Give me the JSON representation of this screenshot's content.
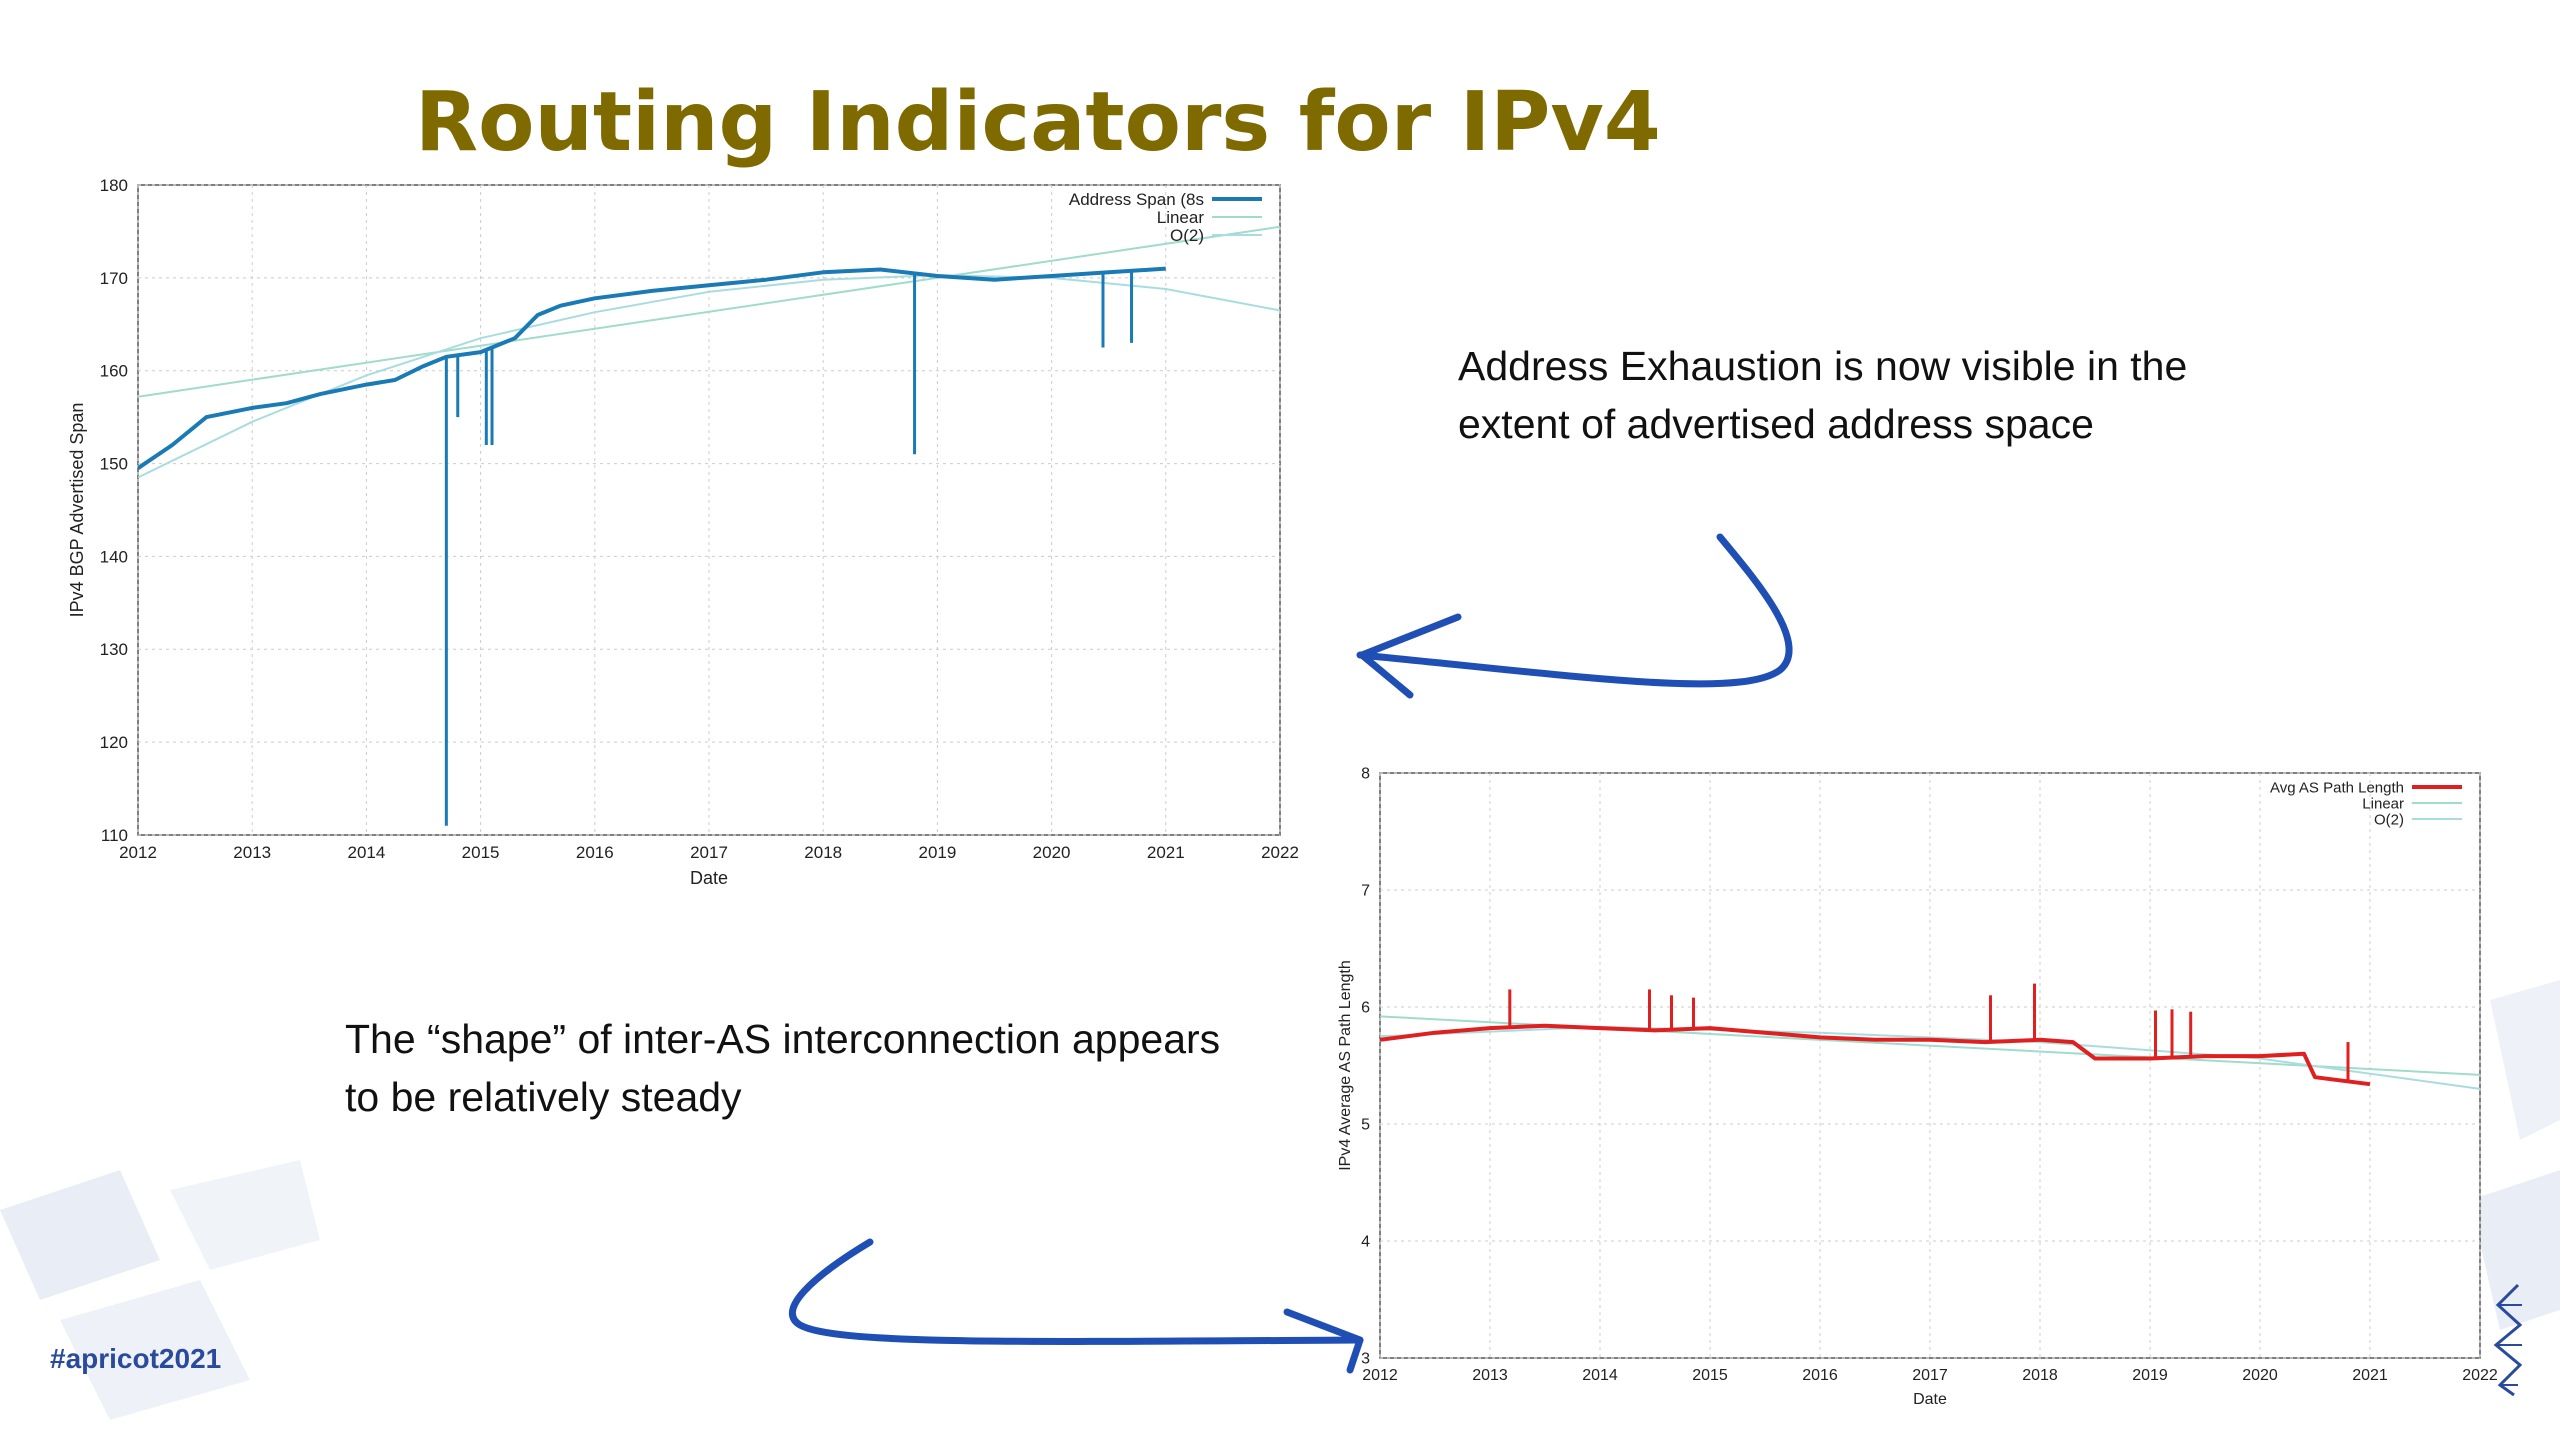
{
  "slide": {
    "title": "Routing Indicators for IPv4",
    "callout_exhaustion": "Address Exhaustion is now visible in the extent of advertised address space",
    "callout_shape": "The “shape” of inter-AS interconnection appears to be relatively steady",
    "hashtag": "#apricot2021",
    "title_color": "#7f6a00",
    "arrow_color": "#1f4fb5"
  },
  "chart_data": [
    {
      "type": "line",
      "xlabel": "Date",
      "ylabel": "IPv4 BGP Advertised Span",
      "xlim": [
        2012,
        2022
      ],
      "ylim": [
        110,
        180
      ],
      "xticks": [
        "2012",
        "2013",
        "2014",
        "2015",
        "2016",
        "2017",
        "2018",
        "2019",
        "2020",
        "2021",
        "2022"
      ],
      "yticks": [
        "110",
        "120",
        "130",
        "140",
        "150",
        "160",
        "170",
        "180"
      ],
      "grid": true,
      "legend_position": "top-right",
      "series": [
        {
          "name": "Address Span (8s",
          "color": "#1a7ab5",
          "x": [
            2012.0,
            2012.3,
            2012.6,
            2013.0,
            2013.3,
            2013.6,
            2014.0,
            2014.25,
            2014.5,
            2014.7,
            2015.0,
            2015.3,
            2015.5,
            2015.7,
            2016.0,
            2016.5,
            2017.0,
            2017.5,
            2018.0,
            2018.5,
            2019.0,
            2019.5,
            2020.0,
            2020.5,
            2021.0
          ],
          "y": [
            149.5,
            152.0,
            155.0,
            156.0,
            156.5,
            157.5,
            158.5,
            159.0,
            160.5,
            161.5,
            162.0,
            163.5,
            166.0,
            167.0,
            167.8,
            168.6,
            169.2,
            169.8,
            170.6,
            170.9,
            170.2,
            169.8,
            170.2,
            170.6,
            171.0
          ]
        },
        {
          "name": "Linear",
          "color": "#9fdccb",
          "x": [
            2012,
            2022
          ],
          "y": [
            157.2,
            175.5
          ]
        },
        {
          "name": "O(2)",
          "color": "#a8dde0",
          "x": [
            2012.0,
            2013.0,
            2014.0,
            2015.0,
            2016.0,
            2017.0,
            2018.0,
            2019.0,
            2020.0,
            2021.0,
            2022.0
          ],
          "y": [
            148.5,
            154.5,
            159.5,
            163.5,
            166.3,
            168.5,
            169.8,
            170.3,
            170.0,
            168.8,
            166.5
          ]
        }
      ],
      "annotations": [
        {
          "x": 2014.7,
          "y": 111.0
        },
        {
          "x": 2014.8,
          "y": 155.0
        },
        {
          "x": 2015.05,
          "y": 152.0
        },
        {
          "x": 2015.1,
          "y": 152.0
        },
        {
          "x": 2018.8,
          "y": 151.0
        },
        {
          "x": 2020.45,
          "y": 162.5
        },
        {
          "x": 2020.7,
          "y": 163.0
        }
      ]
    },
    {
      "type": "line",
      "xlabel": "Date",
      "ylabel": "IPv4 Average AS Path Length",
      "xlim": [
        2012,
        2022
      ],
      "ylim": [
        3,
        8
      ],
      "xticks": [
        "2012",
        "2013",
        "2014",
        "2015",
        "2016",
        "2017",
        "2018",
        "2019",
        "2020",
        "2021",
        "2022"
      ],
      "yticks": [
        "3",
        "4",
        "5",
        "6",
        "7",
        "8"
      ],
      "grid": true,
      "legend_position": "top-right",
      "series": [
        {
          "name": "Avg AS Path Length",
          "color": "#e02020",
          "x": [
            2012.0,
            2012.5,
            2013.0,
            2013.5,
            2014.0,
            2014.5,
            2015.0,
            2015.5,
            2016.0,
            2016.5,
            2017.0,
            2017.5,
            2018.0,
            2018.3,
            2018.5,
            2019.0,
            2019.5,
            2020.0,
            2020.4,
            2020.5,
            2021.0
          ],
          "y": [
            5.72,
            5.78,
            5.82,
            5.84,
            5.82,
            5.8,
            5.82,
            5.78,
            5.74,
            5.72,
            5.72,
            5.7,
            5.72,
            5.7,
            5.56,
            5.56,
            5.58,
            5.58,
            5.6,
            5.4,
            5.34
          ]
        },
        {
          "name": "Linear",
          "color": "#9fdccb",
          "x": [
            2012,
            2022
          ],
          "y": [
            5.92,
            5.42
          ]
        },
        {
          "name": "O(2)",
          "color": "#a8dde0",
          "x": [
            2012.0,
            2014.0,
            2016.0,
            2018.0,
            2020.0,
            2022.0
          ],
          "y": [
            5.75,
            5.83,
            5.78,
            5.7,
            5.56,
            5.3
          ]
        }
      ],
      "annotations": [
        {
          "x": 2013.18,
          "y": 6.15
        },
        {
          "x": 2014.45,
          "y": 6.15
        },
        {
          "x": 2014.65,
          "y": 6.1
        },
        {
          "x": 2014.85,
          "y": 6.08
        },
        {
          "x": 2017.55,
          "y": 6.1
        },
        {
          "x": 2017.95,
          "y": 6.2
        },
        {
          "x": 2019.05,
          "y": 5.97
        },
        {
          "x": 2019.2,
          "y": 5.98
        },
        {
          "x": 2019.37,
          "y": 5.96
        },
        {
          "x": 2020.8,
          "y": 5.7
        }
      ]
    }
  ]
}
